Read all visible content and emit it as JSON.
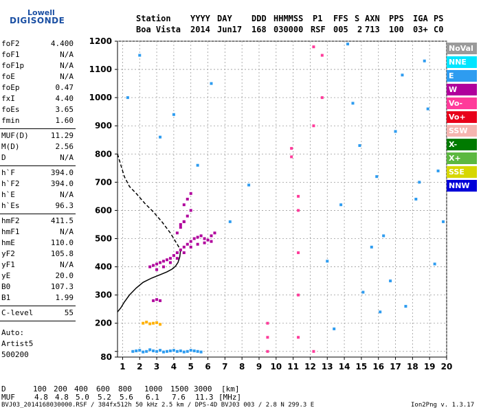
{
  "logo": {
    "line1": "Lowell",
    "line2": "DIGISONDE"
  },
  "header": {
    "labels": [
      "Station",
      "YYYY",
      "DAY",
      "DDD",
      "HHMMSS",
      "P1",
      "FFS",
      "S",
      "AXN",
      "PPS",
      "IGA",
      "PS"
    ],
    "values": [
      "Boa Vista",
      "2014",
      "Jun17",
      "168",
      "030000",
      "RSF",
      "005",
      "2",
      "713",
      "100",
      "03+",
      "C0"
    ]
  },
  "params": [
    {
      "label": "foF2",
      "value": "4.400"
    },
    {
      "label": "foF1",
      "value": "N/A"
    },
    {
      "label": "foF1p",
      "value": "N/A"
    },
    {
      "label": "foE",
      "value": "N/A"
    },
    {
      "label": "foEp",
      "value": "0.47"
    },
    {
      "label": "fxI",
      "value": "4.40"
    },
    {
      "label": "foEs",
      "value": "3.65"
    },
    {
      "label": "fmin",
      "value": "1.60"
    },
    {
      "label": "MUF(D)",
      "value": "11.29"
    },
    {
      "label": "M(D)",
      "value": "2.56"
    },
    {
      "label": "D",
      "value": "N/A"
    },
    {
      "label": "h`F",
      "value": "394.0"
    },
    {
      "label": "h`F2",
      "value": "394.0"
    },
    {
      "label": "h`E",
      "value": "N/A"
    },
    {
      "label": "h`Es",
      "value": "96.3"
    },
    {
      "label": "hmF2",
      "value": "411.5"
    },
    {
      "label": "hmF1",
      "value": "N/A"
    },
    {
      "label": "hmE",
      "value": "110.0"
    },
    {
      "label": "yF2",
      "value": "105.8"
    },
    {
      "label": "yF1",
      "value": "N/A"
    },
    {
      "label": "yE",
      "value": "20.0"
    },
    {
      "label": "B0",
      "value": "107.3"
    },
    {
      "label": "B1",
      "value": "1.99"
    },
    {
      "label": "C-level",
      "value": "55"
    }
  ],
  "artist": {
    "line1": "Auto:",
    "line2": "Artist5",
    "line3": "500200"
  },
  "legend": [
    {
      "label": "NoVal",
      "color": "#9a9a9a"
    },
    {
      "label": "NNE",
      "color": "#00e5ff"
    },
    {
      "label": "E",
      "color": "#2e9cf0"
    },
    {
      "label": "W",
      "color": "#b0009c"
    },
    {
      "label": "Vo-",
      "color": "#ff3b9a"
    },
    {
      "label": "Vo+",
      "color": "#e8001a"
    },
    {
      "label": "SSW",
      "color": "#f5b5b0"
    },
    {
      "label": "X-",
      "color": "#007a00"
    },
    {
      "label": "X+",
      "color": "#5cb840"
    },
    {
      "label": "SSE",
      "color": "#d7d700"
    },
    {
      "label": "NNW",
      "color": "#0000d8"
    }
  ],
  "muf_table": {
    "d_label": "D",
    "d_values": [
      "100",
      "200",
      "400",
      "600",
      "800",
      "1000",
      "1500",
      "3000"
    ],
    "d_unit": "[km]",
    "muf_label": "MUF",
    "muf_values": [
      "4.8",
      "4.8",
      "5.0",
      "5.2",
      "5.6",
      "6.1",
      "7.6",
      "11.3"
    ],
    "muf_unit": "[MHz]"
  },
  "footer": {
    "left": "BVJ03_2014168030000.RSF / 384fx512h 50 kHz 2.5 km / DPS-4D BVJ03 003 / 2.8 N 299.3 E",
    "right": "Ion2Png v. 1.3.17"
  },
  "chart_data": {
    "type": "scatter",
    "xlim": [
      0.7,
      20
    ],
    "ylim": [
      80,
      1200
    ],
    "xticks": [
      1,
      2,
      3,
      4,
      5,
      6,
      7,
      8,
      9,
      10,
      11,
      12,
      13,
      14,
      15,
      16,
      17,
      18,
      19,
      20
    ],
    "yticks": [
      80,
      100,
      200,
      300,
      400,
      500,
      600,
      700,
      800,
      900,
      1000,
      1100,
      1200
    ],
    "ytick_labels": [
      "80",
      "",
      "200",
      "300",
      "400",
      "500",
      "600",
      "700",
      "800",
      "900",
      "1000",
      "1100",
      "1200"
    ],
    "grid": true,
    "x_unit": "MHz",
    "y_unit": "km",
    "series": [
      {
        "name": "trace-solid",
        "color": "#000000",
        "dash": false,
        "x": [
          0.7,
          0.9,
          1.1,
          1.4,
          1.8,
          2.2,
          2.7,
          3.2,
          3.6,
          3.9,
          4.1,
          4.25,
          4.35,
          4.4
        ],
        "y": [
          240,
          255,
          275,
          300,
          325,
          345,
          360,
          372,
          382,
          392,
          402,
          416,
          435,
          460
        ]
      },
      {
        "name": "trace-dashed",
        "color": "#000000",
        "dash": true,
        "x": [
          0.7,
          0.9,
          1.1,
          1.4,
          1.8,
          2.3,
          2.8,
          3.3,
          3.8,
          4.1,
          4.3,
          4.4
        ],
        "y": [
          800,
          760,
          720,
          685,
          660,
          625,
          595,
          560,
          520,
          490,
          470,
          460
        ]
      },
      {
        "name": "spread-F-cloud",
        "color": "#b0009c",
        "x": [
          2.6,
          2.8,
          3.0,
          3.2,
          3.4,
          3.6,
          3.8,
          4.0,
          4.2,
          4.4,
          4.6,
          4.8,
          5.0,
          5.2,
          5.4,
          5.6,
          5.8,
          6.0,
          6.2,
          6.4,
          3.0,
          3.4,
          3.8,
          4.2,
          4.6,
          5.0,
          5.4,
          5.8,
          6.2,
          4.4,
          4.6,
          4.8,
          5.0,
          4.2,
          4.4,
          4.6,
          4.6,
          4.8,
          5.0
        ],
        "y": [
          400,
          405,
          410,
          415,
          420,
          425,
          430,
          440,
          450,
          460,
          470,
          480,
          490,
          500,
          505,
          510,
          500,
          495,
          510,
          520,
          390,
          400,
          415,
          430,
          450,
          470,
          480,
          485,
          490,
          550,
          560,
          580,
          600,
          520,
          540,
          560,
          620,
          640,
          660
        ]
      },
      {
        "name": "Es-layer",
        "color": "#2e9cf0",
        "x": [
          1.6,
          1.8,
          2.0,
          2.2,
          2.4,
          2.6,
          2.8,
          3.0,
          3.2,
          3.4,
          3.6,
          3.8,
          4.0,
          4.2,
          4.4,
          4.6,
          4.8,
          5.0,
          5.2,
          5.4,
          5.6
        ],
        "y": [
          100,
          102,
          104,
          98,
          100,
          106,
          102,
          100,
          104,
          98,
          100,
          102,
          104,
          100,
          102,
          98,
          100,
          104,
          102,
          100,
          98
        ]
      },
      {
        "name": "E-low",
        "color": "#ffb000",
        "x": [
          2.2,
          2.4,
          2.6,
          2.8,
          3.0,
          3.2
        ],
        "y": [
          200,
          204,
          198,
          200,
          202,
          196
        ]
      },
      {
        "name": "E-mid",
        "color": "#b0009c",
        "x": [
          2.8,
          3.0,
          3.2
        ],
        "y": [
          280,
          284,
          280
        ]
      },
      {
        "name": "interference-lines",
        "color": "#ff3b9a",
        "x": [
          9.5,
          9.5,
          9.5,
          10.9,
          10.9,
          11.3,
          11.3,
          11.3,
          11.3,
          11.3,
          12.2,
          12.2,
          12.2,
          12.7,
          12.7
        ],
        "y": [
          100,
          150,
          200,
          790,
          820,
          150,
          300,
          450,
          600,
          650,
          100,
          900,
          1180,
          1000,
          1150
        ]
      },
      {
        "name": "noise",
        "color": "#2e9cf0",
        "x": [
          1.3,
          2.0,
          3.2,
          4.0,
          5.4,
          6.2,
          7.3,
          8.4,
          13.0,
          13.8,
          14.5,
          15.1,
          15.9,
          16.3,
          17.0,
          17.6,
          18.2,
          18.7,
          19.3,
          19.8,
          13.4,
          14.9,
          16.7,
          18.9,
          19.5,
          15.6,
          17.4,
          14.2,
          16.1,
          18.4
        ],
        "y": [
          1000,
          1150,
          860,
          940,
          760,
          1050,
          560,
          690,
          420,
          620,
          980,
          310,
          720,
          510,
          880,
          260,
          640,
          1130,
          410,
          560,
          180,
          830,
          350,
          960,
          740,
          470,
          1080,
          1190,
          240,
          700
        ]
      }
    ]
  }
}
